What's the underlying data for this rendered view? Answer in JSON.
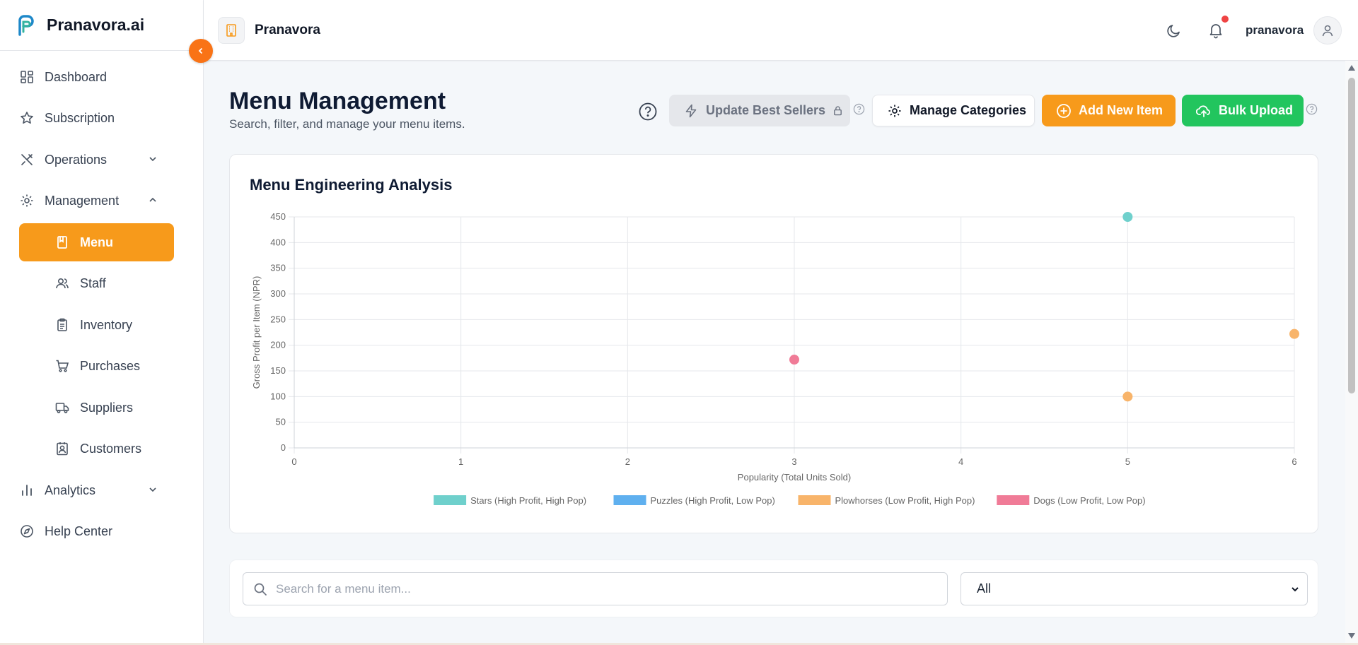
{
  "brand": {
    "name": "Pranavora.ai"
  },
  "sidebar": {
    "items": [
      {
        "label": "Dashboard",
        "icon": "dashboard-icon"
      },
      {
        "label": "Subscription",
        "icon": "star-icon"
      },
      {
        "label": "Operations",
        "icon": "utensils-icon",
        "expandable": true
      },
      {
        "label": "Management",
        "icon": "gear-icon",
        "expandable": true,
        "expanded": true
      },
      {
        "label": "Analytics",
        "icon": "bar-chart-icon",
        "expandable": true
      },
      {
        "label": "Help Center",
        "icon": "compass-icon"
      }
    ],
    "management_sub": [
      {
        "label": "Menu",
        "icon": "book-icon",
        "active": true
      },
      {
        "label": "Staff",
        "icon": "users-icon"
      },
      {
        "label": "Inventory",
        "icon": "clipboard-icon"
      },
      {
        "label": "Purchases",
        "icon": "cart-icon"
      },
      {
        "label": "Suppliers",
        "icon": "truck-icon"
      },
      {
        "label": "Customers",
        "icon": "contact-icon"
      }
    ]
  },
  "topbar": {
    "org_name": "Pranavora",
    "user_name": "pranavora"
  },
  "header": {
    "title": "Menu Management",
    "subtitle": "Search, filter, and manage your menu items.",
    "update_label": "Update Best Sellers",
    "manage_label": "Manage Categories",
    "add_label": "Add New Item",
    "bulk_label": "Bulk Upload"
  },
  "chart": {
    "title": "Menu Engineering Analysis"
  },
  "chart_data": {
    "type": "scatter",
    "xlabel": "Popularity (Total Units Sold)",
    "ylabel": "Gross Profit per Item (NPR)",
    "xlim": [
      0,
      6
    ],
    "ylim": [
      0,
      450
    ],
    "xticks": [
      0,
      1,
      2,
      3,
      4,
      5,
      6
    ],
    "yticks": [
      0,
      50,
      100,
      150,
      200,
      250,
      300,
      350,
      400,
      450
    ],
    "grid": true,
    "legend_position": "bottom",
    "series": [
      {
        "name": "Stars (High Profit, High Pop)",
        "color": "#6fd0cc",
        "points": [
          {
            "x": 5,
            "y": 450
          }
        ]
      },
      {
        "name": "Puzzles (High Profit, Low Pop)",
        "color": "#5fb0ef",
        "points": []
      },
      {
        "name": "Plowhorses (Low Profit, High Pop)",
        "color": "#f8b46a",
        "points": [
          {
            "x": 5,
            "y": 100
          },
          {
            "x": 6,
            "y": 222
          }
        ]
      },
      {
        "name": "Dogs (Low Profit, Low Pop)",
        "color": "#f07b97",
        "points": [
          {
            "x": 3,
            "y": 172
          }
        ]
      }
    ]
  },
  "filters": {
    "search_placeholder": "Search for a menu item...",
    "category_value": "All"
  },
  "colors": {
    "accent": "#f79a1b",
    "success": "#22c55e",
    "notification": "#ef4444"
  }
}
